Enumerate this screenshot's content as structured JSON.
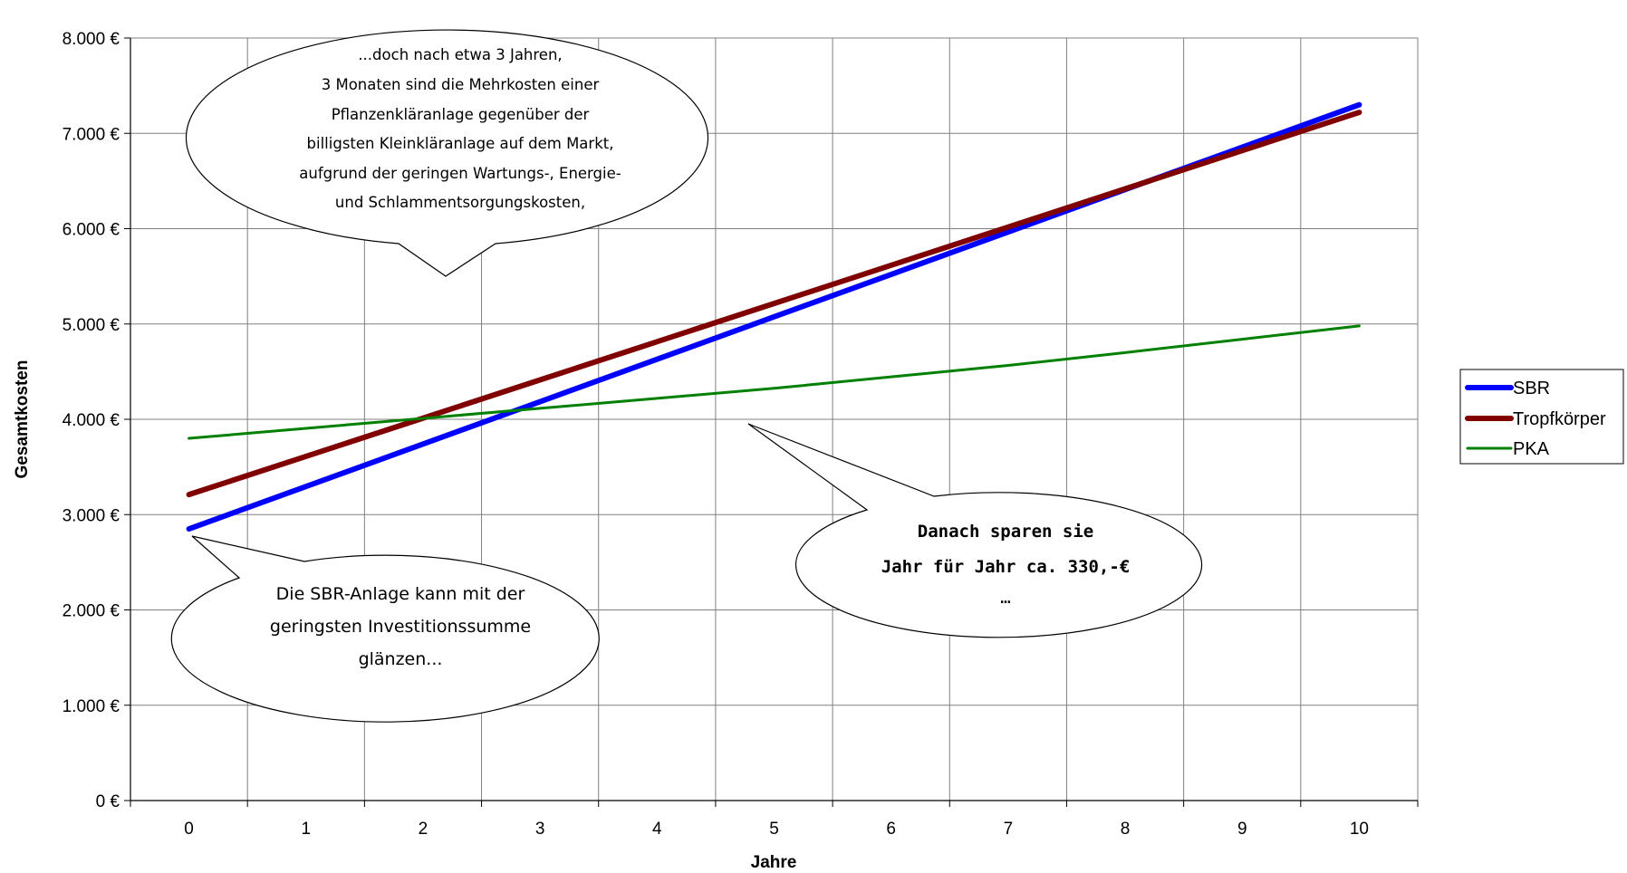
{
  "chart_data": {
    "type": "line",
    "title": "",
    "xlabel": "Jahre",
    "ylabel": "Gesamtkosten",
    "x": [
      0,
      1,
      2,
      3,
      4,
      5,
      6,
      7,
      8,
      9,
      10
    ],
    "xlim": [
      -0.5,
      10.5
    ],
    "ylim": [
      0,
      8000
    ],
    "yticks": [
      0,
      1000,
      2000,
      3000,
      4000,
      5000,
      6000,
      7000,
      8000
    ],
    "ytick_labels": [
      "0 €",
      "1.000 €",
      "2.000 €",
      "3.000 €",
      "4.000 €",
      "5.000 €",
      "6.000 €",
      "7.000 €",
      "8.000 €"
    ],
    "xtick_labels": [
      "0",
      "1",
      "2",
      "3",
      "4",
      "5",
      "6",
      "7",
      "8",
      "9",
      "10"
    ],
    "grid": true,
    "legend_position": "right",
    "series": [
      {
        "name": "SBR",
        "color": "#0000ff",
        "values": [
          2850,
          3295,
          3740,
          4185,
          4630,
          5075,
          5520,
          5965,
          6410,
          6855,
          7300
        ]
      },
      {
        "name": "Tropfkörper",
        "color": "#800000",
        "values": [
          3210,
          3611,
          4012,
          4413,
          4814,
          5215,
          5616,
          6017,
          6418,
          6819,
          7220
        ]
      },
      {
        "name": "PKA",
        "color": "#008000",
        "values": [
          3800,
          3905,
          4010,
          4115,
          4220,
          4325,
          4445,
          4565,
          4700,
          4840,
          4980
        ]
      }
    ],
    "annotations": [
      {
        "id": "top",
        "lines": [
          "...doch nach etwa 3 Jahren,",
          "3 Monaten sind die Mehrkosten einer",
          "Pflanzenkläranlage gegenüber der",
          "billigsten  Kleinkläranlage auf dem Markt,",
          "aufgrund der geringen Wartungs-, Energie-",
          "und Schlammentsorgungskosten,"
        ]
      },
      {
        "id": "bottom-left",
        "lines": [
          "Die SBR-Anlage kann mit der",
          "geringsten Investitionssumme",
          "glänzen..."
        ]
      },
      {
        "id": "right",
        "lines": [
          "Danach sparen sie",
          "Jahr für Jahr ca. 330,-€",
          "…"
        ]
      }
    ]
  }
}
